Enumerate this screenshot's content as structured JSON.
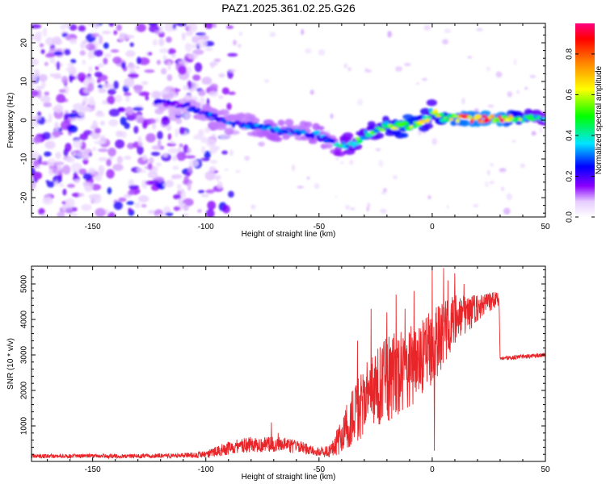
{
  "title": "PAZ1.2025.361.02.25.G26",
  "chart_data": [
    {
      "type": "heatmap",
      "title": "PAZ1.2025.361.02.25.G26",
      "xlabel": "Height of straight line (km)",
      "ylabel": "Frequency (Hz)",
      "xlim": [
        -177,
        50
      ],
      "ylim": [
        -25,
        25
      ],
      "xticks": [
        -150,
        -100,
        -50,
        0,
        50
      ],
      "xtick_labels": [
        "-150",
        "-100",
        "-50",
        "0",
        "50"
      ],
      "yticks": [
        -20,
        -10,
        0,
        10,
        20
      ],
      "ytick_labels": [
        "-20",
        "-10",
        "0",
        "10",
        "20"
      ],
      "colorbar": {
        "label": "Normalized spectral amplitude",
        "range": [
          0,
          0.95
        ],
        "ticks": [
          0,
          0.2,
          0.4,
          0.6,
          0.8
        ],
        "tick_labels": [
          "0.0",
          "0.2",
          "0.4",
          "0.6",
          "0.8"
        ],
        "colormap": "rainbow (purple-blue-cyan-green-yellow-red-magenta)"
      },
      "ridge": {
        "description": "dominant frequency track vs height",
        "x": [
          -120,
          -110,
          -100,
          -90,
          -80,
          -70,
          -60,
          -50,
          -45,
          -40,
          -35,
          -30,
          -25,
          -20,
          -15,
          -10,
          -5,
          -2,
          0,
          5,
          10,
          20,
          30,
          40,
          50
        ],
        "y": [
          4.5,
          4,
          2,
          -0.5,
          -1.5,
          -2.5,
          -3,
          -4,
          -5.5,
          -6.5,
          -6,
          -4,
          -2.5,
          -1.5,
          -1.5,
          -1.5,
          -0.5,
          0.5,
          2.5,
          0.5,
          0.5,
          0.3,
          0.3,
          0.5,
          0.8
        ],
        "amplitude": [
          0.25,
          0.25,
          0.3,
          0.3,
          0.3,
          0.35,
          0.3,
          0.35,
          0.3,
          0.45,
          0.5,
          0.55,
          0.55,
          0.6,
          0.7,
          0.8,
          0.7,
          0.6,
          0.55,
          0.7,
          0.85,
          0.9,
          0.9,
          0.6,
          0.45
        ]
      },
      "background_noise": {
        "x_range": [
          -177,
          -95
        ],
        "y_range": [
          -25,
          25
        ],
        "amplitude_range": [
          0.05,
          0.25
        ]
      }
    },
    {
      "type": "line",
      "xlabel": "Height of straight line (km)",
      "ylabel": "SNR (10 * v/v)",
      "xlim": [
        -177,
        50
      ],
      "ylim": [
        0,
        5500
      ],
      "xticks": [
        -150,
        -100,
        -50,
        0,
        50
      ],
      "xtick_labels": [
        "-150",
        "-100",
        "-50",
        "0",
        "50"
      ],
      "yticks": [
        1000,
        2000,
        3000,
        4000,
        5000
      ],
      "ytick_labels": [
        "1000",
        "2000",
        "3000",
        "4000",
        "5000"
      ],
      "color": "#e8262a",
      "envelope": {
        "x": [
          -177,
          -130,
          -110,
          -100,
          -95,
          -90,
          -80,
          -70,
          -60,
          -55,
          -50,
          -45,
          -40,
          -35,
          -30,
          -25,
          -20,
          -15,
          -10,
          -5,
          0,
          5,
          10,
          20,
          29.5,
          30,
          40,
          50
        ],
        "center": [
          150,
          150,
          170,
          200,
          280,
          380,
          480,
          480,
          420,
          350,
          250,
          300,
          700,
          1300,
          1700,
          2000,
          2300,
          2500,
          2700,
          2900,
          3200,
          3600,
          4000,
          4300,
          4600,
          2900,
          2950,
          3000
        ],
        "spread": [
          60,
          60,
          70,
          100,
          150,
          200,
          230,
          230,
          200,
          150,
          120,
          200,
          500,
          800,
          1000,
          1100,
          1200,
          1200,
          1200,
          1200,
          1100,
          900,
          700,
          400,
          200,
          60,
          60,
          60
        ]
      },
      "spikes": [
        {
          "x": -71,
          "y": 1100
        },
        {
          "x": -68,
          "y": 800
        },
        {
          "x": -33,
          "y": 3400
        },
        {
          "x": -27,
          "y": 4300
        },
        {
          "x": -25,
          "y": 1600
        },
        {
          "x": -20,
          "y": 4200
        },
        {
          "x": -16,
          "y": 4700
        },
        {
          "x": -12,
          "y": 4300
        },
        {
          "x": -8,
          "y": 4800
        },
        {
          "x": -3,
          "y": 3700
        },
        {
          "x": 0,
          "y": 5500
        },
        {
          "x": 1,
          "y": 300
        },
        {
          "x": 5,
          "y": 5450
        },
        {
          "x": 6,
          "y": 4000
        },
        {
          "x": 7,
          "y": 5100
        },
        {
          "x": 10,
          "y": 5300
        },
        {
          "x": 14,
          "y": 5000
        },
        {
          "x": 25,
          "y": 4700
        }
      ]
    }
  ]
}
